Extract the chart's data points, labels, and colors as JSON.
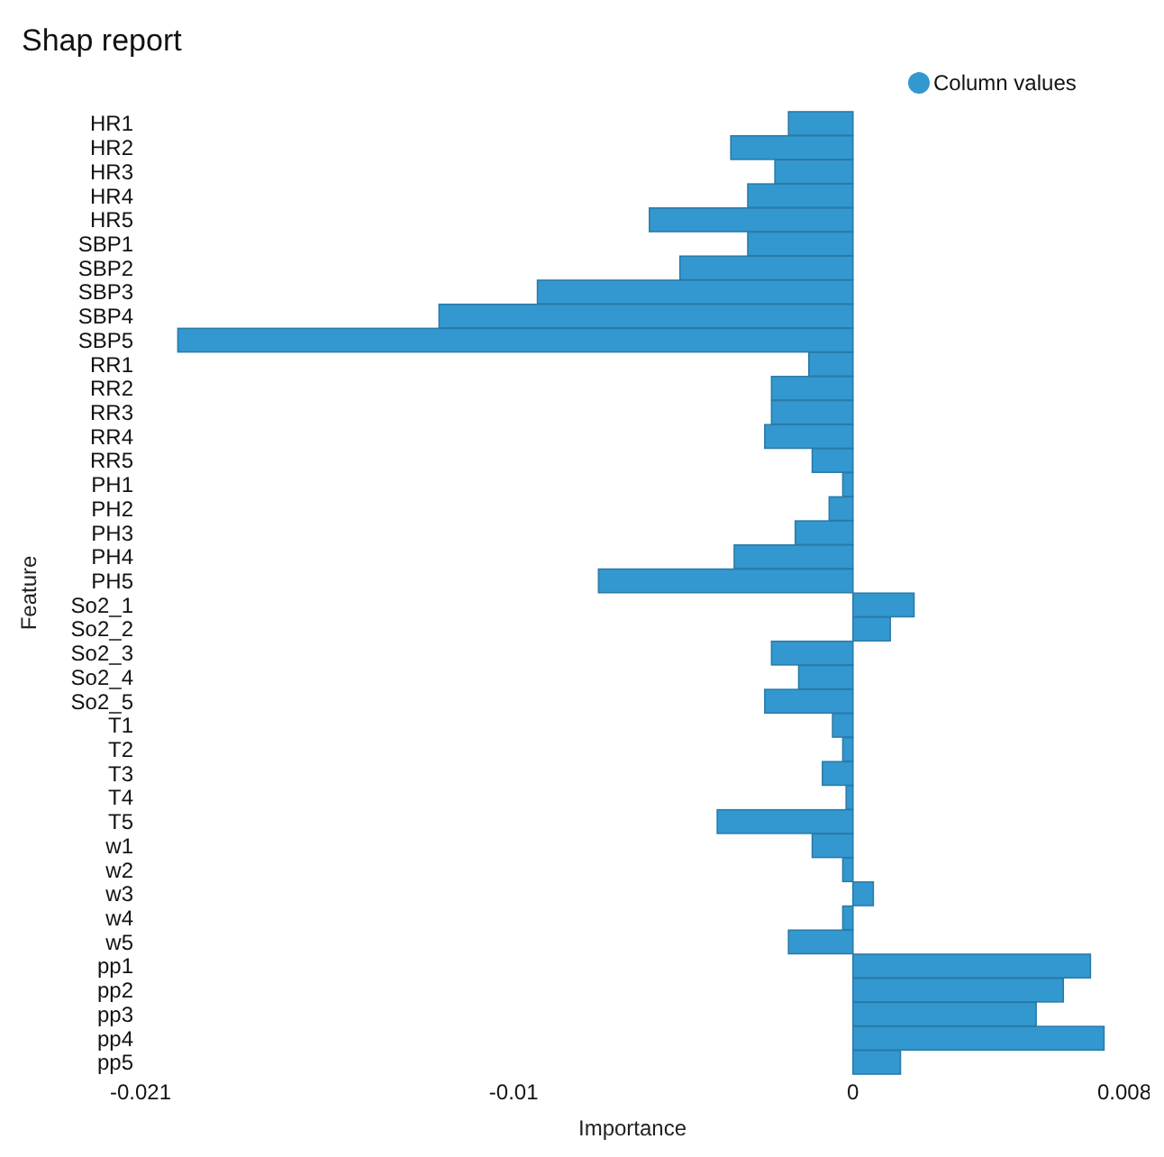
{
  "chart_data": {
    "type": "bar",
    "orientation": "horizontal",
    "title": "Shap report",
    "xlabel": "Importance",
    "ylabel": "Feature",
    "categories": [
      "HR1",
      "HR2",
      "HR3",
      "HR4",
      "HR5",
      "SBP1",
      "SBP2",
      "SBP3",
      "SBP4",
      "SBP5",
      "RR1",
      "RR2",
      "RR3",
      "RR4",
      "RR5",
      "PH1",
      "PH2",
      "PH3",
      "PH4",
      "PH5",
      "So2_1",
      "So2_2",
      "So2_3",
      "So2_4",
      "So2_5",
      "T1",
      "T2",
      "T3",
      "T4",
      "T5",
      "w1",
      "w2",
      "w3",
      "w4",
      "w5",
      "pp1",
      "pp2",
      "pp3",
      "pp4",
      "pp5"
    ],
    "series": [
      {
        "name": "Column values",
        "color": "#3498d0",
        "values": [
          -0.0019,
          -0.0036,
          -0.0023,
          -0.0031,
          -0.006,
          -0.0031,
          -0.0051,
          -0.0093,
          -0.0122,
          -0.0199,
          -0.0013,
          -0.0024,
          -0.0024,
          -0.0026,
          -0.0012,
          -0.0003,
          -0.0007,
          -0.0017,
          -0.0035,
          -0.0075,
          0.0018,
          0.0011,
          -0.0024,
          -0.0016,
          -0.0026,
          -0.0006,
          -0.0003,
          -0.0009,
          -0.0002,
          -0.004,
          -0.0012,
          -0.0003,
          0.0006,
          -0.0003,
          -0.0019,
          0.007,
          0.0062,
          0.0054,
          0.0074,
          0.0014
        ]
      }
    ],
    "xlim": [
      -0.021,
      0.008
    ],
    "xticks": [
      -0.021,
      -0.01,
      0,
      0.008
    ],
    "grid": false,
    "legend": "top right"
  }
}
